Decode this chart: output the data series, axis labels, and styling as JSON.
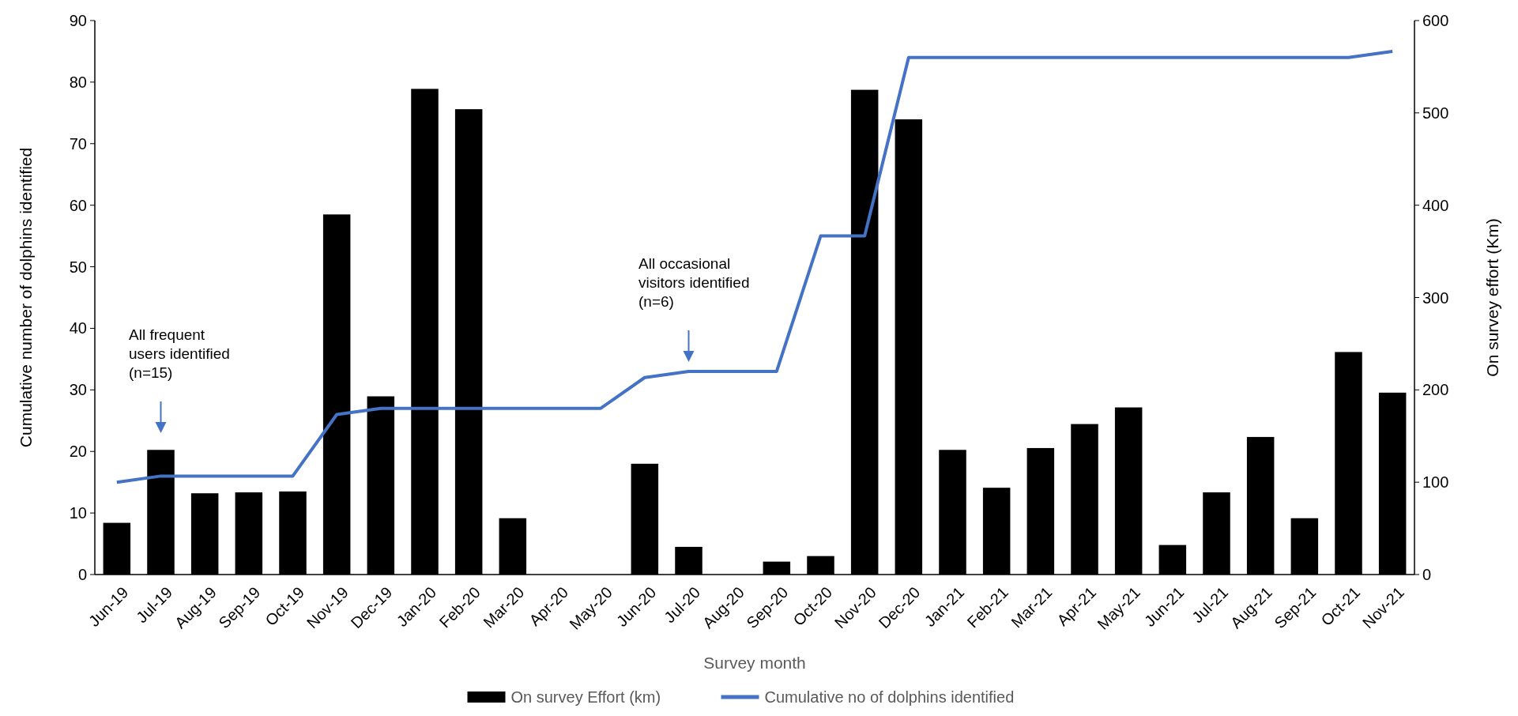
{
  "chart_data": {
    "type": "bar",
    "xlabel": "Survey month",
    "ylabel": "Cumulative number of dolphins identified",
    "y2label": "On survey effort (Km)",
    "categories": [
      "Jun-19",
      "Jul-19",
      "Aug-19",
      "Sep-19",
      "Oct-19",
      "Nov-19",
      "Dec-19",
      "Jan-20",
      "Feb-20",
      "Mar-20",
      "Apr-20",
      "May-20",
      "Jun-20",
      "Jul-20",
      "Aug-20",
      "Sep-20",
      "Oct-20",
      "Nov-20",
      "Dec-20",
      "Jan-21",
      "Feb-21",
      "Mar-21",
      "Apr-21",
      "May-21",
      "Jun-21",
      "Jul-21",
      "Aug-21",
      "Sep-21",
      "Oct-21",
      "Nov-21"
    ],
    "series": [
      {
        "name": "On survey Effort (km)",
        "axis": "y2",
        "color": "#000000",
        "values": [
          56,
          135,
          88,
          89,
          90,
          390,
          193,
          526,
          504,
          61,
          0,
          0,
          120,
          30,
          0,
          14,
          20,
          525,
          493,
          135,
          94,
          137,
          163,
          181,
          32,
          89,
          149,
          61,
          241,
          197
        ]
      },
      {
        "name": "Cumulative no of dolphins identified",
        "type": "line",
        "color": "#4472c4",
        "values": [
          15,
          16,
          16,
          16,
          16,
          26,
          27,
          27,
          27,
          27,
          27,
          27,
          32,
          33,
          33,
          33,
          55,
          55,
          84,
          84,
          84,
          84,
          84,
          84,
          84,
          84,
          84,
          84,
          84,
          85
        ]
      }
    ],
    "ylim": [
      0,
      90
    ],
    "yticks": [
      0,
      10,
      20,
      30,
      40,
      50,
      60,
      70,
      80,
      90
    ],
    "y2lim": [
      0,
      600
    ],
    "y2ticks": [
      0,
      100,
      200,
      300,
      400,
      500,
      600
    ],
    "annotations": [
      "All frequent\nusers identified\n(n=15)",
      "All occasional\nvisitors identified\n(n=6)"
    ],
    "legend": "bottom",
    "grid": false,
    "line_style": "solid",
    "marker": "none"
  }
}
